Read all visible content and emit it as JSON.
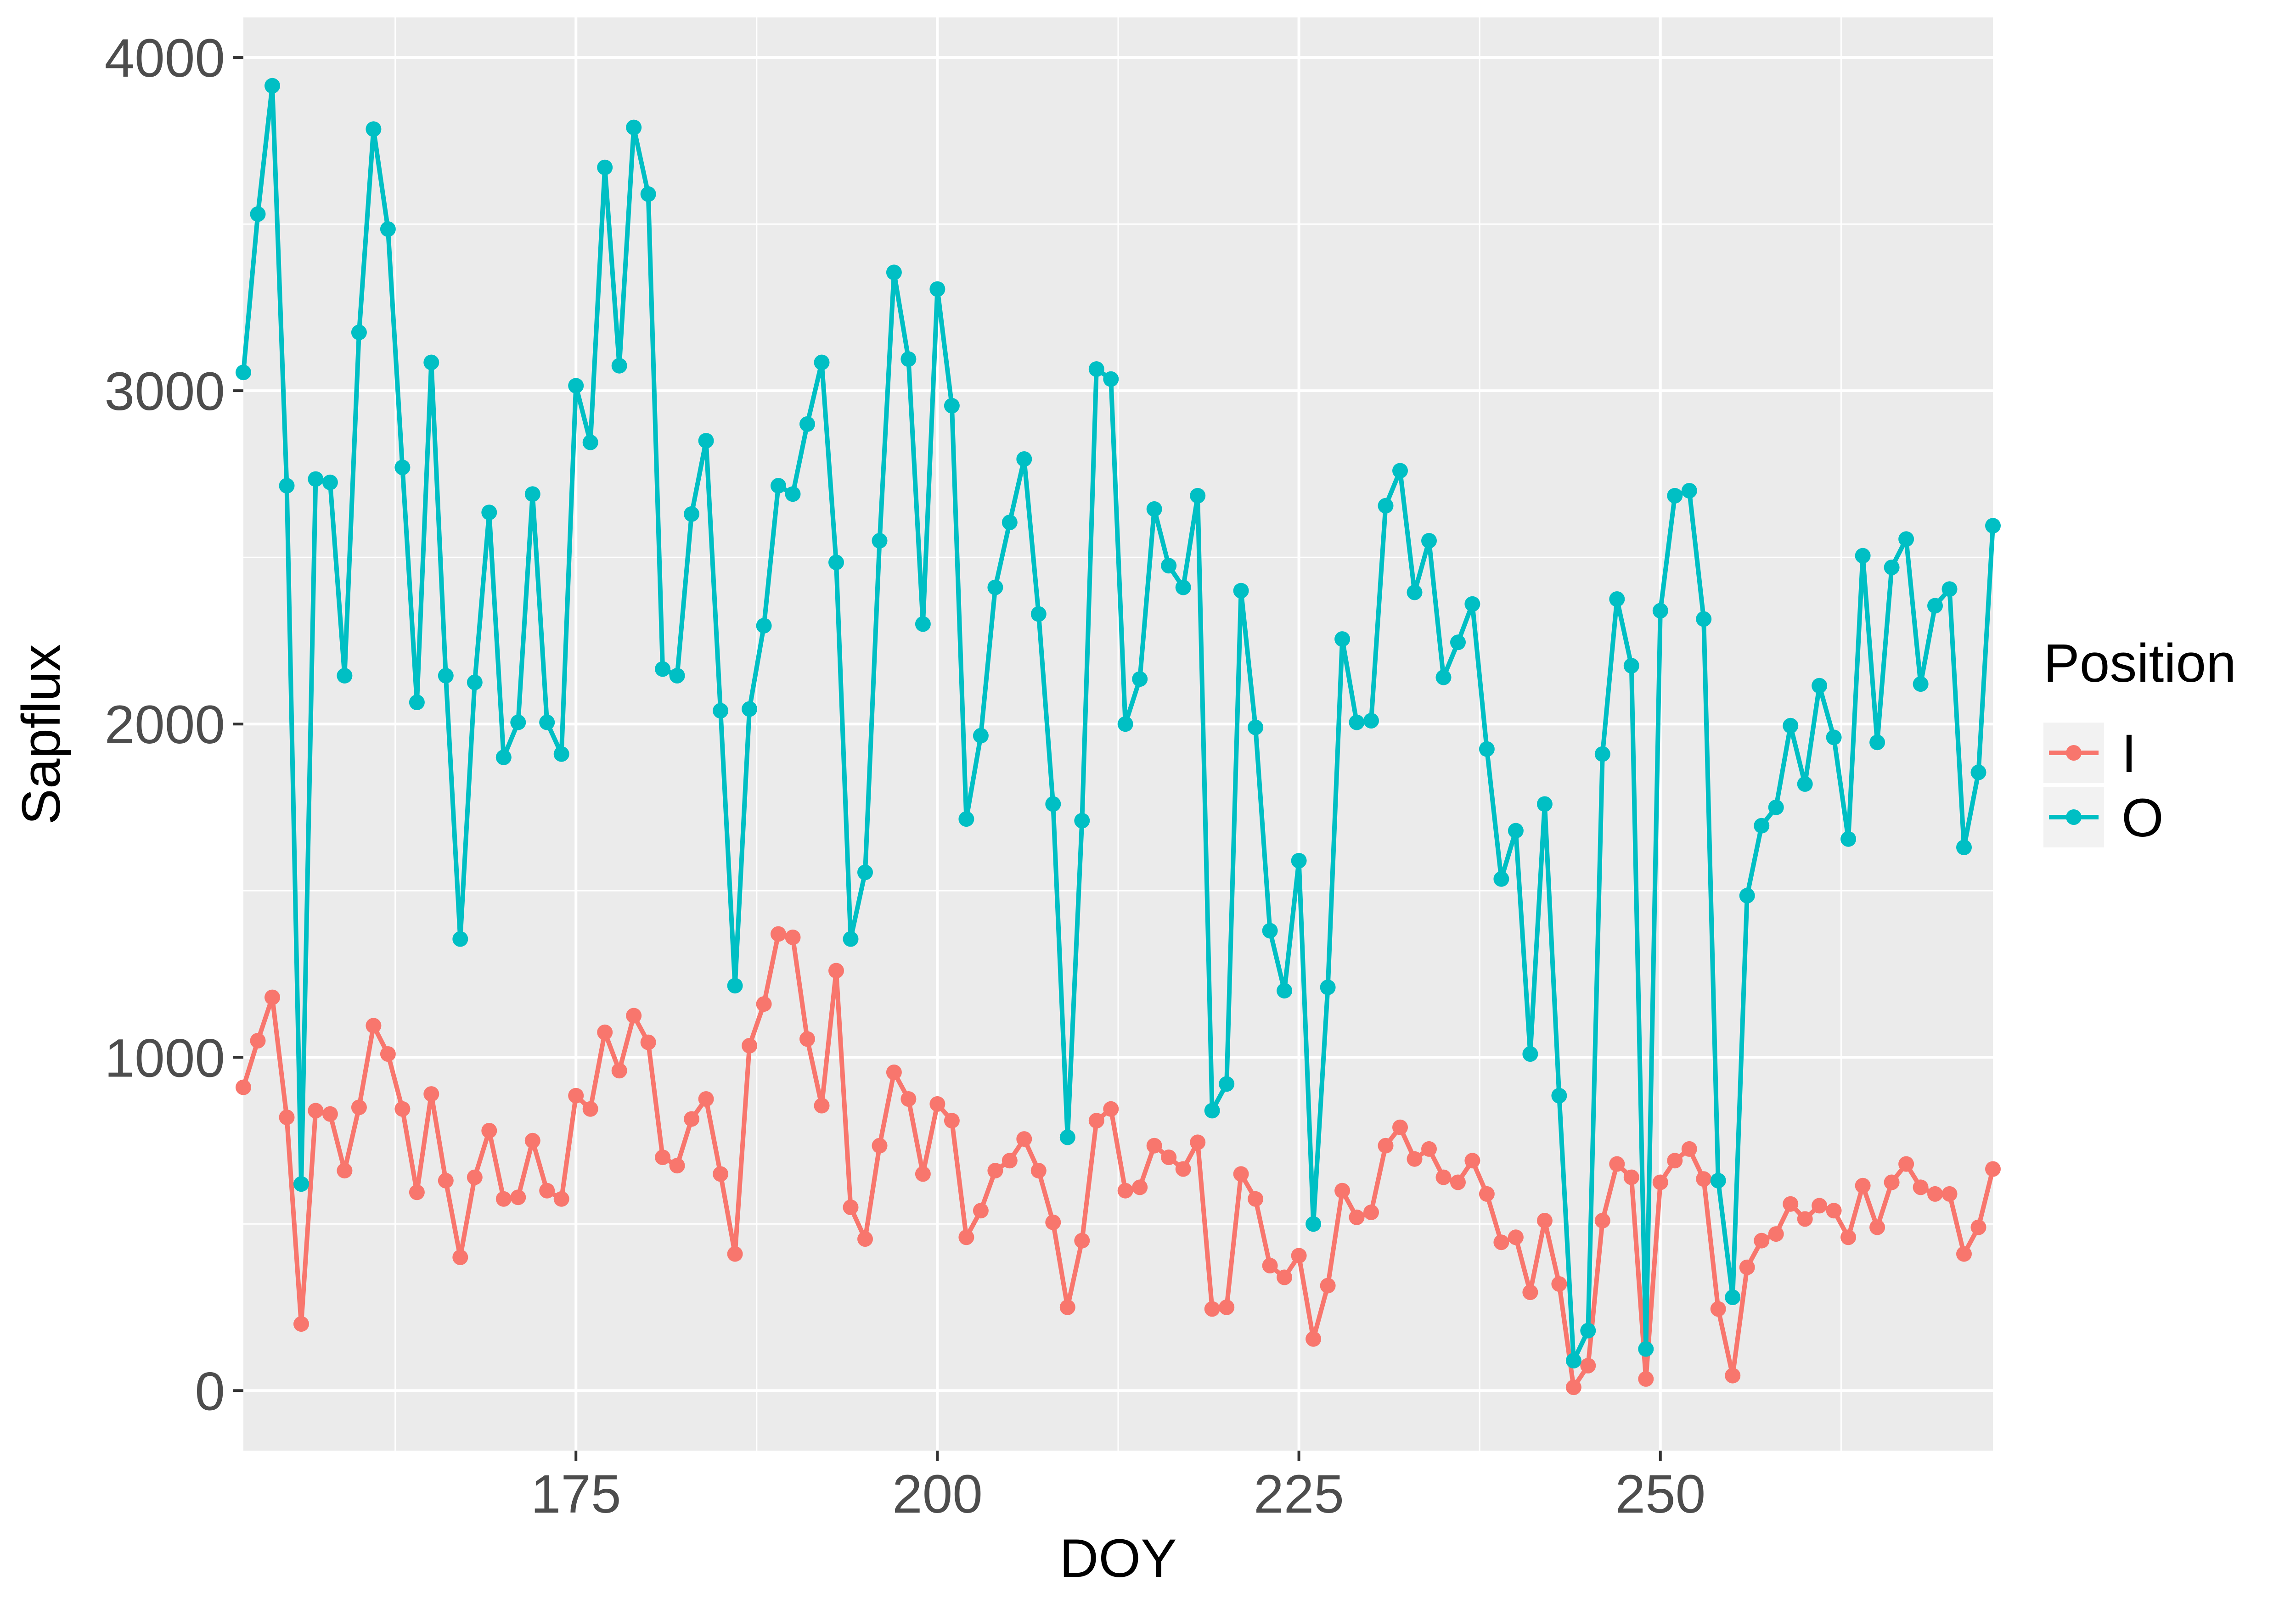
{
  "chart_data": {
    "type": "line",
    "title": "",
    "xlabel": "DOY",
    "ylabel": "Sapflux",
    "xlim": [
      152,
      273
    ],
    "ylim": [
      -180,
      4120
    ],
    "x_ticks": [
      175,
      200,
      225,
      250
    ],
    "y_ticks": [
      0,
      1000,
      2000,
      3000,
      4000
    ],
    "grid": true,
    "legend": {
      "title": "Position",
      "placement": "right"
    },
    "x": [
      152,
      153,
      154,
      155,
      156,
      157,
      158,
      159,
      160,
      161,
      162,
      163,
      164,
      165,
      166,
      167,
      168,
      169,
      170,
      171,
      172,
      173,
      174,
      175,
      176,
      177,
      178,
      179,
      180,
      181,
      182,
      183,
      184,
      185,
      186,
      187,
      188,
      189,
      190,
      191,
      192,
      193,
      194,
      195,
      196,
      197,
      198,
      199,
      200,
      201,
      202,
      203,
      204,
      205,
      206,
      207,
      208,
      209,
      210,
      211,
      212,
      213,
      214,
      215,
      216,
      217,
      218,
      219,
      220,
      221,
      222,
      223,
      224,
      225,
      226,
      227,
      228,
      229,
      230,
      231,
      232,
      233,
      234,
      235,
      236,
      237,
      238,
      239,
      240,
      241,
      242,
      243,
      244,
      245,
      246,
      247,
      248,
      249,
      250,
      251,
      252,
      253,
      254,
      255,
      256,
      257,
      258,
      259,
      260,
      261,
      262,
      263,
      264,
      265,
      266,
      267,
      268,
      269,
      270,
      271,
      272,
      273
    ],
    "series": [
      {
        "name": "I",
        "color": "#F8766D",
        "values": [
          910,
          1050,
          1180,
          820,
          200,
          840,
          830,
          660,
          850,
          1095,
          1010,
          845,
          595,
          890,
          630,
          400,
          640,
          780,
          575,
          580,
          750,
          600,
          575,
          885,
          845,
          1075,
          960,
          1125,
          1045,
          700,
          675,
          815,
          875,
          650,
          410,
          1035,
          1160,
          1370,
          1360,
          1055,
          855,
          1260,
          550,
          455,
          735,
          955,
          875,
          650,
          860,
          810,
          460,
          540,
          660,
          690,
          755,
          660,
          505,
          250,
          450,
          810,
          845,
          600,
          610,
          735,
          700,
          665,
          745,
          245,
          250,
          650,
          575,
          375,
          340,
          405,
          155,
          315,
          600,
          520,
          535,
          735,
          790,
          695,
          725,
          640,
          625,
          690,
          590,
          445,
          460,
          295,
          510,
          320,
          10,
          75,
          510,
          680,
          640,
          35,
          625,
          690,
          725,
          635,
          245,
          45,
          370,
          450,
          470,
          560,
          515,
          555,
          540,
          460,
          615,
          490,
          625,
          680,
          610,
          590,
          590,
          410,
          490,
          665
        ]
      },
      {
        "name": "O",
        "color": "#00BFC4",
        "values": [
          3055,
          3530,
          3915,
          2715,
          620,
          2735,
          2725,
          2145,
          3175,
          3785,
          3485,
          2770,
          2065,
          3085,
          2145,
          1355,
          2125,
          2635,
          1900,
          2005,
          2690,
          2005,
          1910,
          3015,
          2845,
          3670,
          3075,
          3790,
          3590,
          2165,
          2145,
          2630,
          2850,
          2040,
          1215,
          2045,
          2295,
          2715,
          2690,
          2900,
          3085,
          2485,
          1355,
          1555,
          2550,
          3355,
          3095,
          2300,
          3305,
          2955,
          1715,
          1965,
          2410,
          2605,
          2795,
          2330,
          1760,
          760,
          1710,
          3065,
          3035,
          2000,
          2135,
          2645,
          2475,
          2410,
          2685,
          840,
          920,
          2400,
          1990,
          1380,
          1200,
          1590,
          500,
          1210,
          2255,
          2005,
          2010,
          2655,
          2760,
          2395,
          2550,
          2140,
          2245,
          2360,
          1925,
          1535,
          1680,
          1010,
          1760,
          885,
          90,
          180,
          1910,
          2375,
          2175,
          125,
          2340,
          2685,
          2700,
          2315,
          630,
          280,
          1485,
          1695,
          1750,
          1995,
          1820,
          2115,
          1960,
          1655,
          2505,
          1945,
          2470,
          2555,
          2120,
          2355,
          2405,
          1630,
          1855,
          2595
        ]
      }
    ]
  }
}
